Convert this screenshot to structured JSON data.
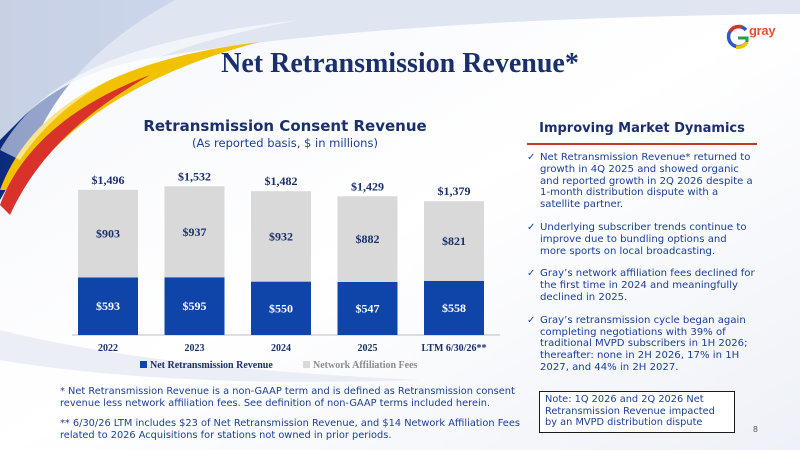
{
  "slide": {
    "title": "Net Retransmission Revenue*",
    "page_number": "8",
    "logo_text": "gray"
  },
  "colors": {
    "navy": "#1a2f6b",
    "series_net": "#0f45a8",
    "series_fees": "#d9d9d9",
    "accent_rule": "#c0392b"
  },
  "chart_data": {
    "type": "bar",
    "stacked": true,
    "title": "Retransmission Consent Revenue",
    "subtitle": "(As reported basis, $ in millions)",
    "categories": [
      "2022",
      "2023",
      "2024",
      "2025",
      "LTM 6/30/26**"
    ],
    "series": [
      {
        "name": "Net Retransmission Revenue",
        "values": [
          593,
          595,
          550,
          547,
          558
        ],
        "labels": [
          "$593",
          "$595",
          "$550",
          "$547",
          "$558"
        ],
        "color": "#0f45a8"
      },
      {
        "name": "Network Affiliation Fees",
        "values": [
          903,
          937,
          932,
          882,
          821
        ],
        "labels": [
          "$903",
          "$937",
          "$932",
          "$882",
          "$821"
        ],
        "color": "#d9d9d9"
      }
    ],
    "totals": [
      1496,
      1532,
      1482,
      1429,
      1379
    ],
    "total_labels": [
      "$1,496",
      "$1,532",
      "$1,482",
      "$1,429",
      "$1,379"
    ],
    "ylim": [
      0,
      1700
    ],
    "legend_position": "bottom",
    "grid": false
  },
  "panel": {
    "title": "Improving Market Dynamics",
    "bullets": [
      "Net Retransmission Revenue* returned to growth in 4Q 2025 and showed organic and reported growth in 2Q 2026 despite a 1-month distribution dispute with a satellite partner.",
      "Underlying subscriber trends continue to improve due to bundling options and more sports on local broadcasting.",
      "Gray’s network affiliation fees declined for the first time in 2024 and meaningfully declined in 2025.",
      "Gray’s retransmission cycle began again completing negotiations with 39% of traditional MVPD subscribers in 1H 2026; thereafter: none in 2H 2026, 17% in 1H 2027, and 44% in 2H 2027."
    ],
    "note": "Note: 1Q 2026 and 2Q 2026 Net Retransmission Revenue impacted by an MVPD distribution dispute"
  },
  "footnotes": {
    "one": "* Net Retransmission Revenue is a non-GAAP term and is defined as Retransmission consent revenue less network affiliation fees. See definition of non-GAAP terms included herein.",
    "two": "** 6/30/26 LTM includes $23 of Net Retransmission Revenue, and $14 Network Affiliation Fees related to 2026 Acquisitions for stations not owned in prior periods."
  }
}
